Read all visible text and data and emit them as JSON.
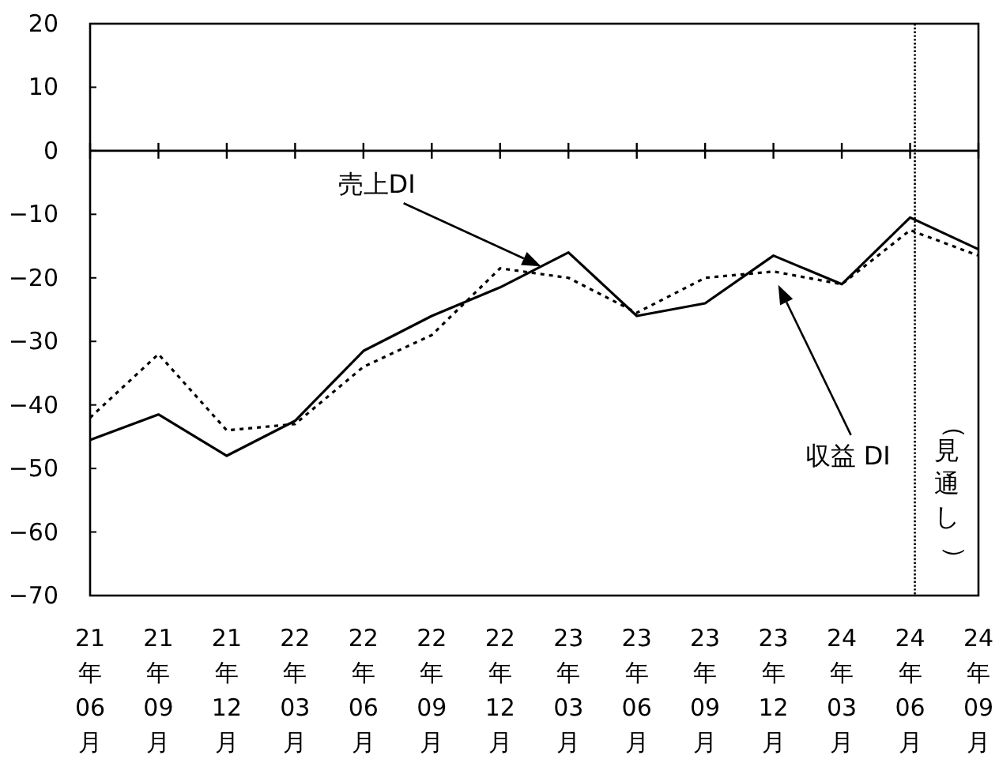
{
  "chart_data": {
    "type": "line",
    "categories": [
      "21年06月",
      "21年09月",
      "21年12月",
      "22年03月",
      "22年06月",
      "22年09月",
      "22年12月",
      "23年03月",
      "23年06月",
      "23年09月",
      "23年12月",
      "24年03月",
      "24年06月",
      "24年09月"
    ],
    "series": [
      {
        "name": "売上DI",
        "color": "#000000",
        "line_style": "solid",
        "values": [
          -45.5,
          -41.5,
          -48,
          -42.5,
          -31.5,
          -26,
          -21.5,
          -16,
          -26,
          -24,
          -16.5,
          -21,
          -10.5,
          -15.5
        ]
      },
      {
        "name": "収益 DI",
        "color": "#000000",
        "line_style": "dashed",
        "values": [
          -42,
          -32,
          -44,
          -43,
          -34,
          -29,
          -18.5,
          -20,
          -25.5,
          -20,
          -19,
          -21,
          -12.5,
          -16.5
        ]
      }
    ],
    "ylim": [
      -70,
      20
    ],
    "yticks": [
      -70,
      -60,
      -50,
      -40,
      -30,
      -20,
      -10,
      0,
      10,
      20
    ],
    "ref_lines": [
      {
        "axis": "x",
        "value": "24年06月",
        "label": "（見通し）",
        "line_style": "dotted",
        "color": "#000000"
      }
    ]
  }
}
